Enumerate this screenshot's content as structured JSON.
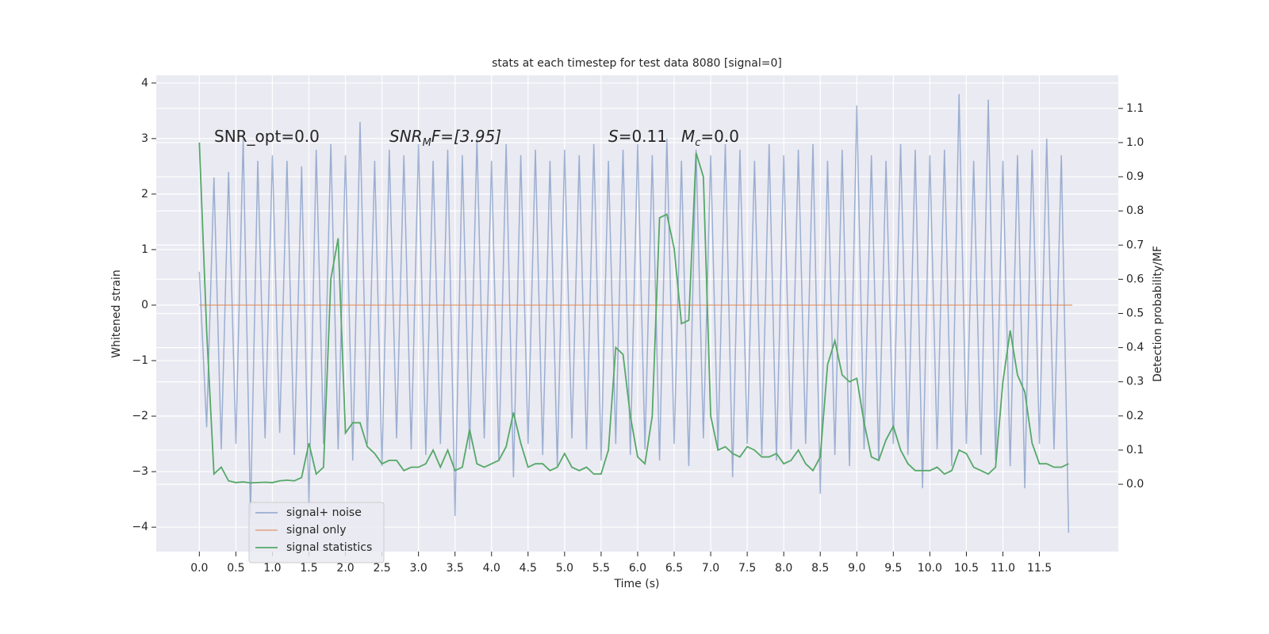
{
  "chart_data": {
    "type": "line",
    "title": "stats at each timestep for test data 8080 [signal=0]",
    "xlabel": "Time (s)",
    "ylabel": "Whitened strain",
    "y2label": "Detection probability/MF",
    "annotations": [
      [
        "SNR_opt=0.0"
      ],
      [
        "SNR",
        "M",
        "F=[3.95]"
      ],
      [
        "S",
        "=0.11"
      ],
      [
        "M",
        "c",
        "=0.0"
      ]
    ],
    "xlim": [
      -0.59,
      12.58
    ],
    "ylim": [
      -4.44,
      4.14
    ],
    "y2lim": [
      -0.197,
      1.197
    ],
    "xticks": [
      {
        "value": 0,
        "label": "0.0"
      },
      0.5,
      {
        "value": 1,
        "label": "1.0"
      },
      1.5,
      {
        "value": 2,
        "label": "2.0"
      },
      2.5,
      {
        "value": 3,
        "label": "3.0"
      },
      3.5,
      {
        "value": 4,
        "label": "4.0"
      },
      4.5,
      {
        "value": 5,
        "label": "5.0"
      },
      5.5,
      {
        "value": 6,
        "label": "6.0"
      },
      6.5,
      {
        "value": 7,
        "label": "7.0"
      },
      7.5,
      {
        "value": 8,
        "label": "8.0"
      },
      8.5,
      {
        "value": 9,
        "label": "9.0"
      },
      9.5,
      {
        "value": 10,
        "label": "10.0"
      },
      10.5,
      {
        "value": 11,
        "label": "11.0"
      },
      11.5
    ],
    "yticks": [
      {
        "value": -4,
        "label": "−4"
      },
      {
        "value": -3,
        "label": "−3"
      },
      {
        "value": -2,
        "label": "−2"
      },
      {
        "value": -1,
        "label": "−1"
      },
      0,
      1,
      2,
      3,
      4
    ],
    "y2ticks": [
      {
        "value": 0,
        "label": "0.0"
      },
      0.1,
      0.2,
      0.3,
      0.4,
      0.5,
      0.6,
      0.7,
      0.8,
      0.9,
      {
        "value": 1,
        "label": "1.0"
      },
      1.1
    ],
    "grid": true,
    "legend": "lower left",
    "series": [
      {
        "name": "signal+ noise",
        "color": "#4c72b0",
        "x": [
          0,
          0.1,
          0.2,
          0.3,
          0.4,
          0.5,
          0.6,
          0.7,
          0.8,
          0.9,
          1,
          1.1,
          1.2,
          1.3,
          1.4,
          1.5,
          1.6,
          1.7,
          1.8,
          1.9,
          2,
          2.1,
          2.2,
          2.3,
          2.4,
          2.5,
          2.6,
          2.7,
          2.8,
          2.9,
          3,
          3.1,
          3.2,
          3.3,
          3.4,
          3.5,
          3.6,
          3.7,
          3.8,
          3.9,
          4,
          4.1,
          4.2,
          4.3,
          4.4,
          4.5,
          4.6,
          4.7,
          4.8,
          4.9,
          5,
          5.1,
          5.2,
          5.3,
          5.4,
          5.5,
          5.6,
          5.7,
          5.8,
          5.9,
          6,
          6.1,
          6.2,
          6.3,
          6.4,
          6.5,
          6.6,
          6.7,
          6.8,
          6.9,
          7,
          7.1,
          7.2,
          7.3,
          7.4,
          7.5,
          7.6,
          7.7,
          7.8,
          7.9,
          8,
          8.1,
          8.2,
          8.3,
          8.4,
          8.5,
          8.6,
          8.7,
          8.8,
          8.9,
          9,
          9.1,
          9.2,
          9.3,
          9.4,
          9.5,
          9.6,
          9.7,
          9.8,
          9.9,
          10,
          10.1,
          10.2,
          10.3,
          10.4,
          10.5,
          10.6,
          10.7,
          10.8,
          10.9,
          11,
          11.1,
          11.2,
          11.3,
          11.4,
          11.5,
          11.6,
          11.7,
          11.8,
          11.9
        ],
        "values": [
          0.6,
          -2.2,
          2.3,
          -2.6,
          2.4,
          -2.5,
          3.0,
          -3.8,
          2.6,
          -2.4,
          2.7,
          -2.3,
          2.6,
          -2.7,
          2.5,
          -3.6,
          2.8,
          -2.5,
          2.9,
          -2.6,
          2.7,
          -2.8,
          3.3,
          -2.5,
          2.6,
          -2.9,
          2.8,
          -2.4,
          2.7,
          -2.6,
          2.9,
          -2.7,
          2.6,
          -2.5,
          2.8,
          -3.8,
          2.7,
          -2.6,
          3.0,
          -2.4,
          2.6,
          -2.8,
          2.9,
          -3.1,
          2.7,
          -2.5,
          2.8,
          -2.7,
          2.6,
          -2.9,
          2.8,
          -2.4,
          2.7,
          -2.6,
          2.9,
          -2.8,
          2.6,
          -2.5,
          2.8,
          -2.7,
          2.9,
          -2.6,
          2.7,
          -2.8,
          3.0,
          -2.5,
          2.6,
          -2.9,
          2.8,
          -2.4,
          2.7,
          -2.6,
          2.9,
          -3.1,
          2.8,
          -2.5,
          2.6,
          -2.7,
          2.9,
          -2.8,
          2.7,
          -2.6,
          2.8,
          -2.5,
          2.9,
          -3.4,
          2.6,
          -2.7,
          2.8,
          -2.9,
          3.6,
          -2.6,
          2.7,
          -2.8,
          2.6,
          -2.5,
          2.9,
          -2.7,
          2.8,
          -3.3,
          2.7,
          -2.6,
          2.8,
          -2.9,
          3.8,
          -2.5,
          2.6,
          -2.7,
          3.7,
          -2.8,
          2.6,
          -2.9,
          2.7,
          -3.3,
          2.8,
          -2.5,
          3.0,
          -2.6,
          2.7,
          -4.1
        ]
      },
      {
        "name": "signal only",
        "color": "#dd8452",
        "x": [
          0,
          11.95
        ],
        "values": [
          0,
          0
        ]
      },
      {
        "name": "signal statistics",
        "color": "#55a868",
        "axis": "y2",
        "x": [
          0,
          0.1,
          0.2,
          0.3,
          0.4,
          0.5,
          0.6,
          0.7,
          0.8,
          0.9,
          1,
          1.1,
          1.2,
          1.3,
          1.4,
          1.5,
          1.6,
          1.7,
          1.8,
          1.9,
          2,
          2.1,
          2.2,
          2.3,
          2.4,
          2.5,
          2.6,
          2.7,
          2.8,
          2.9,
          3,
          3.1,
          3.2,
          3.3,
          3.4,
          3.5,
          3.6,
          3.7,
          3.8,
          3.9,
          4,
          4.1,
          4.2,
          4.3,
          4.4,
          4.5,
          4.6,
          4.7,
          4.8,
          4.9,
          5,
          5.1,
          5.2,
          5.3,
          5.4,
          5.5,
          5.6,
          5.7,
          5.8,
          5.9,
          6,
          6.1,
          6.2,
          6.3,
          6.4,
          6.5,
          6.6,
          6.7,
          6.8,
          6.9,
          7,
          7.1,
          7.2,
          7.3,
          7.4,
          7.5,
          7.6,
          7.7,
          7.8,
          7.9,
          8,
          8.1,
          8.2,
          8.3,
          8.4,
          8.5,
          8.6,
          8.7,
          8.8,
          8.9,
          9,
          9.1,
          9.2,
          9.3,
          9.4,
          9.5,
          9.6,
          9.7,
          9.8,
          9.9,
          10,
          10.1,
          10.2,
          10.3,
          10.4,
          10.5,
          10.6,
          10.7,
          10.8,
          10.9,
          11,
          11.1,
          11.2,
          11.3,
          11.4,
          11.5,
          11.6,
          11.7,
          11.8,
          11.9
        ],
        "values": [
          1.0,
          0.45,
          0.03,
          0.05,
          0.01,
          0.005,
          0.007,
          0.004,
          0.005,
          0.006,
          0.005,
          0.01,
          0.012,
          0.01,
          0.02,
          0.12,
          0.03,
          0.05,
          0.6,
          0.72,
          0.15,
          0.18,
          0.18,
          0.11,
          0.09,
          0.06,
          0.07,
          0.07,
          0.04,
          0.05,
          0.05,
          0.06,
          0.1,
          0.05,
          0.1,
          0.04,
          0.05,
          0.16,
          0.06,
          0.05,
          0.06,
          0.07,
          0.11,
          0.21,
          0.12,
          0.05,
          0.06,
          0.06,
          0.04,
          0.05,
          0.09,
          0.05,
          0.04,
          0.05,
          0.03,
          0.03,
          0.1,
          0.4,
          0.38,
          0.2,
          0.08,
          0.06,
          0.2,
          0.78,
          0.79,
          0.69,
          0.47,
          0.48,
          0.97,
          0.9,
          0.2,
          0.1,
          0.11,
          0.09,
          0.08,
          0.11,
          0.1,
          0.08,
          0.08,
          0.09,
          0.06,
          0.07,
          0.1,
          0.06,
          0.04,
          0.08,
          0.35,
          0.42,
          0.32,
          0.3,
          0.31,
          0.18,
          0.08,
          0.07,
          0.13,
          0.17,
          0.1,
          0.06,
          0.04,
          0.04,
          0.04,
          0.05,
          0.03,
          0.04,
          0.1,
          0.09,
          0.05,
          0.04,
          0.03,
          0.05,
          0.3,
          0.45,
          0.32,
          0.27,
          0.12,
          0.06,
          0.06,
          0.05,
          0.05,
          0.06
        ]
      }
    ]
  }
}
